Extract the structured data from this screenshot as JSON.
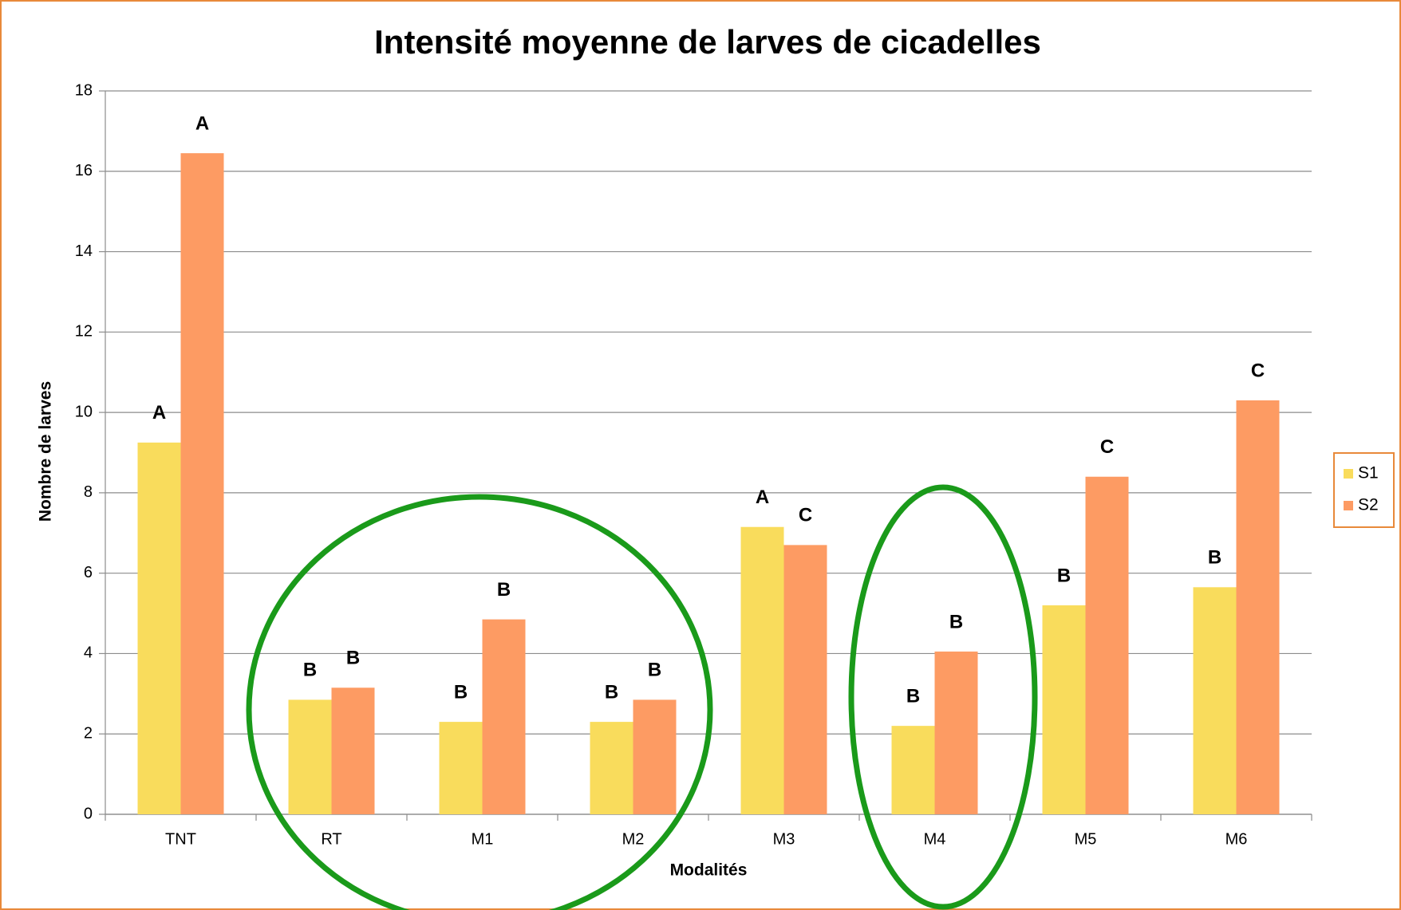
{
  "chart_data": {
    "type": "bar",
    "title": "Intensité moyenne de larves de cicadelles",
    "x_label": "Modalités",
    "y_label": "Nombre de larves",
    "categories": [
      "TNT",
      "RT",
      "M1",
      "M2",
      "M3",
      "M4",
      "M5",
      "M6"
    ],
    "series": [
      {
        "name": "S1",
        "color": "#f9dc5c",
        "values": [
          9.25,
          2.85,
          2.3,
          2.3,
          7.15,
          2.2,
          5.2,
          5.65
        ],
        "annotations": [
          "A",
          "B",
          "B",
          "B",
          "A",
          "B",
          "B",
          "B"
        ]
      },
      {
        "name": "S2",
        "color": "#fd9b63",
        "values": [
          16.45,
          3.15,
          4.85,
          2.85,
          6.7,
          4.05,
          8.4,
          10.3
        ],
        "annotations": [
          "A",
          "B",
          "B",
          "B",
          "C",
          "B",
          "C",
          "C"
        ]
      }
    ],
    "ylim": [
      0,
      18
    ],
    "yticks": [
      0,
      2,
      4,
      6,
      8,
      10,
      12,
      14,
      16,
      18
    ],
    "grid": true,
    "legend": "right"
  }
}
